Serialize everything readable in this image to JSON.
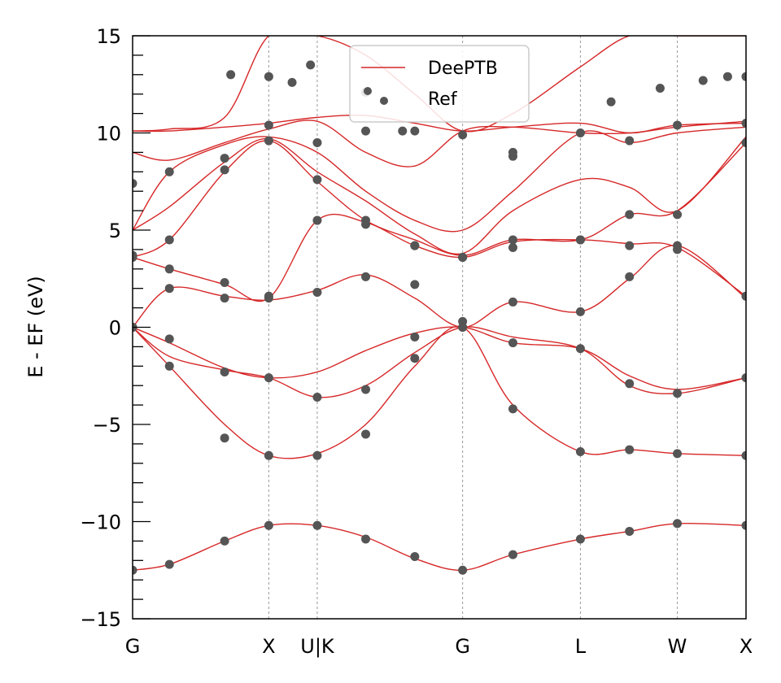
{
  "chart_data": {
    "type": "line",
    "title": "",
    "xlabel": "",
    "ylabel": "E - EF (eV)",
    "ylim": [
      -15,
      15
    ],
    "yticks": [
      -15,
      -10,
      -5,
      0,
      5,
      10,
      15
    ],
    "ytick_labels": [
      "−15",
      "−10",
      "−5",
      "0",
      "5",
      "10",
      "15"
    ],
    "ytick_minor_step": 1,
    "xlim": [
      0,
      1
    ],
    "high_symmetry_points": [
      {
        "label": "G",
        "x": 0.0
      },
      {
        "label": "X",
        "x": 0.222
      },
      {
        "label": "U|K",
        "x": 0.301
      },
      {
        "label": "G",
        "x": 0.538
      },
      {
        "label": "L",
        "x": 0.73
      },
      {
        "label": "W",
        "x": 0.888
      },
      {
        "label": "X",
        "x": 1.0
      }
    ],
    "legend": {
      "position": "top-center",
      "entries": [
        {
          "label": "DeePTB",
          "style": "line",
          "color": "#d62728"
        },
        {
          "label": "Ref",
          "style": "dot",
          "color": "#555555"
        }
      ]
    },
    "colors": {
      "deeptb": "#d62728",
      "ref": "#555555",
      "vline": "#999999"
    },
    "series": [
      {
        "name": "band1",
        "x": [
          0,
          0.06,
          0.15,
          0.222,
          0.301,
          0.38,
          0.46,
          0.538,
          0.62,
          0.73,
          0.81,
          0.888,
          1.0
        ],
        "y": [
          -12.5,
          -12.2,
          -11.0,
          -10.2,
          -10.2,
          -10.8,
          -11.9,
          -12.5,
          -11.7,
          -10.9,
          -10.5,
          -10.1,
          -10.2
        ]
      },
      {
        "name": "band2",
        "x": [
          0,
          0.06,
          0.15,
          0.222,
          0.301,
          0.38,
          0.46,
          0.538,
          0.62,
          0.73,
          0.81,
          0.888,
          1.0
        ],
        "y": [
          0.0,
          -2.0,
          -5.0,
          -6.6,
          -6.5,
          -5.0,
          -2.0,
          0.0,
          -4.0,
          -6.4,
          -6.3,
          -6.5,
          -6.6
        ]
      },
      {
        "name": "band3",
        "x": [
          0,
          0.06,
          0.15,
          0.222,
          0.301,
          0.38,
          0.46,
          0.538,
          0.62,
          0.73,
          0.81,
          0.888,
          1.0
        ],
        "y": [
          0.0,
          -1.5,
          -2.2,
          -2.6,
          -3.6,
          -3.0,
          -1.3,
          0.0,
          -0.5,
          -1.1,
          -3.0,
          -3.4,
          -2.6
        ]
      },
      {
        "name": "band4",
        "x": [
          0,
          0.06,
          0.15,
          0.222,
          0.301,
          0.38,
          0.46,
          0.538,
          0.62,
          0.73,
          0.81,
          0.888,
          1.0
        ],
        "y": [
          0.0,
          -0.8,
          -2.1,
          -2.6,
          -2.3,
          -1.2,
          -0.3,
          0.0,
          -0.8,
          -1.1,
          -2.5,
          -3.2,
          -2.6
        ]
      },
      {
        "name": "band5",
        "x": [
          0,
          0.06,
          0.15,
          0.222,
          0.301,
          0.38,
          0.46,
          0.538,
          0.62,
          0.73,
          0.81,
          0.888,
          1.0
        ],
        "y": [
          0.0,
          2.0,
          1.6,
          1.4,
          1.9,
          2.7,
          1.5,
          0.0,
          1.3,
          0.8,
          2.5,
          4.2,
          1.5
        ]
      },
      {
        "name": "band6",
        "x": [
          0,
          0.06,
          0.15,
          0.222,
          0.301,
          0.38,
          0.46,
          0.538,
          0.62,
          0.73,
          0.81,
          0.888,
          1.0
        ],
        "y": [
          3.6,
          3.0,
          2.2,
          1.5,
          5.5,
          5.4,
          4.2,
          3.6,
          4.4,
          4.5,
          4.3,
          4.1,
          1.6
        ]
      },
      {
        "name": "band7",
        "x": [
          0,
          0.06,
          0.15,
          0.222,
          0.301,
          0.38,
          0.46,
          0.538,
          0.62,
          0.73,
          0.81,
          0.888,
          1.0
        ],
        "y": [
          3.6,
          4.5,
          8.0,
          9.6,
          7.5,
          5.5,
          4.5,
          3.7,
          4.5,
          4.5,
          5.8,
          6.0,
          9.5
        ]
      },
      {
        "name": "band8",
        "x": [
          0,
          0.06,
          0.15,
          0.222,
          0.301,
          0.38,
          0.46,
          0.538,
          0.62,
          0.73,
          0.81,
          0.888,
          1.0
        ],
        "y": [
          5.0,
          6.2,
          8.5,
          9.7,
          8.0,
          6.5,
          4.8,
          3.8,
          6.0,
          7.6,
          7.2,
          6.0,
          9.8
        ]
      },
      {
        "name": "band9",
        "x": [
          0,
          0.06,
          0.15,
          0.222,
          0.301,
          0.38,
          0.46,
          0.538,
          0.62,
          0.73,
          0.81,
          0.888,
          1.0
        ],
        "y": [
          5.0,
          8.0,
          9.4,
          9.8,
          9.0,
          7.0,
          5.5,
          5.0,
          7.0,
          10.0,
          9.5,
          10.0,
          10.3
        ]
      },
      {
        "name": "band10",
        "x": [
          0,
          0.06,
          0.15,
          0.222,
          0.301,
          0.38,
          0.46,
          0.538,
          0.62,
          0.73,
          0.81,
          0.888,
          1.0
        ],
        "y": [
          9.0,
          8.6,
          9.5,
          10.2,
          10.6,
          9.0,
          8.3,
          10.1,
          10.3,
          10.0,
          10.0,
          10.3,
          10.6
        ]
      },
      {
        "name": "band11",
        "x": [
          0,
          0.06,
          0.15,
          0.222,
          0.301,
          0.38,
          0.46,
          0.538,
          0.62,
          0.73,
          0.81,
          0.888,
          1.0
        ],
        "y": [
          10.1,
          10.1,
          10.3,
          10.5,
          10.8,
          10.9,
          10.5,
          10.1,
          10.3,
          10.5,
          10.0,
          10.4,
          10.5
        ]
      },
      {
        "name": "band12",
        "x": [
          0,
          0.06,
          0.15,
          0.222,
          0.301,
          0.38,
          0.46,
          0.538,
          0.62,
          0.73,
          0.81,
          0.888,
          1.0
        ],
        "y": [
          10.1,
          10.2,
          10.8,
          15.0,
          15.0,
          14.0,
          12.0,
          10.1,
          11.0,
          13.4,
          15.0,
          15.0,
          15.0
        ]
      }
    ],
    "ref_points": {
      "x": [
        0,
        0.06,
        0.15,
        0.222,
        0.301,
        0.38,
        0.46,
        0.538,
        0.62,
        0.73,
        0.81,
        0.888,
        1.0,
        0,
        0.06,
        0.15,
        0.222,
        0.301,
        0.38,
        0.46,
        0.538,
        0.62,
        0.73,
        0.81,
        0.888,
        1.0,
        0,
        0.06,
        0.15,
        0.222,
        0.301,
        0.38,
        0.46,
        0.538,
        0.62,
        0.73,
        0.81,
        0.888,
        1.0,
        0,
        0.06,
        0.15,
        0.222,
        0.301,
        0.38,
        0.46,
        0.538,
        0.62,
        0.73,
        0.81,
        0.888,
        1.0,
        0,
        0.06,
        0.15,
        0.222,
        0.301,
        0.38,
        0.46,
        0.538,
        0.62,
        0.73,
        0.81,
        0.888,
        1.0,
        0,
        0.06,
        0.15,
        0.222,
        0.301,
        0.38,
        0.46,
        0.538,
        0.62,
        0.73,
        0.81,
        0.888,
        1.0,
        0,
        0.06,
        0.15,
        0.222,
        0.301,
        0.38,
        0.46,
        0.538,
        0.62,
        0.73,
        0.81,
        0.888,
        1.0,
        0.16,
        0.222,
        0.26,
        0.29,
        0.38,
        0.44,
        0.62,
        0.78,
        0.86,
        0.93,
        0.97,
        1.0
      ],
      "y": [
        -12.5,
        -12.2,
        -11.0,
        -10.2,
        -10.2,
        -10.9,
        -11.8,
        -12.5,
        -11.7,
        -10.9,
        -10.5,
        -10.1,
        -10.2,
        0.0,
        -2.0,
        -5.7,
        -6.6,
        -6.6,
        -5.5,
        -1.6,
        0.0,
        -4.2,
        -6.4,
        -6.3,
        -6.5,
        -6.6,
        0.0,
        -0.6,
        -2.3,
        -2.6,
        -3.6,
        -3.2,
        -0.5,
        0.3,
        -0.8,
        -1.1,
        -2.9,
        -3.4,
        -2.6,
        0.0,
        2.0,
        1.5,
        1.5,
        1.8,
        2.6,
        2.2,
        0.0,
        1.3,
        0.8,
        2.6,
        4.2,
        1.6,
        3.6,
        3.0,
        2.3,
        1.6,
        5.5,
        5.3,
        4.2,
        3.6,
        4.5,
        4.5,
        4.2,
        4.0,
        1.6,
        3.7,
        4.5,
        8.1,
        9.6,
        7.6,
        5.5,
        4.2,
        3.6,
        4.1,
        4.5,
        5.8,
        5.8,
        9.5,
        7.4,
        8.0,
        8.7,
        10.4,
        9.5,
        10.1,
        10.1,
        9.9,
        8.8,
        10.0,
        9.6,
        10.4,
        10.5,
        13.0,
        12.9,
        12.6,
        13.5,
        12.1,
        10.1,
        9.0,
        11.6,
        12.3,
        12.7,
        12.9,
        12.9
      ]
    }
  }
}
